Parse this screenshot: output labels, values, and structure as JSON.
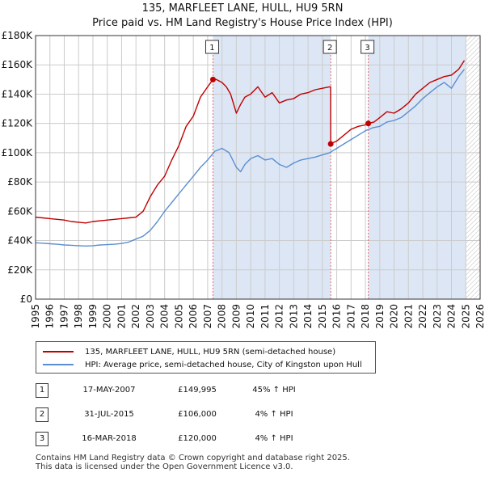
{
  "title": {
    "line1": "135, MARFLEET LANE, HULL, HU9 5RN",
    "line2": "Price paid vs. HM Land Registry's House Price Index (HPI)"
  },
  "colors": {
    "property": "#c00000",
    "hpi": "#5b8fd0",
    "shade": "#dde6f5",
    "grid": "#cccccc",
    "marker_line": "#e07070"
  },
  "chart_data": {
    "type": "line",
    "title": "135, MARFLEET LANE, HULL, HU9 5RN — Price paid vs. HM Land Registry's House Price Index (HPI)",
    "xlabel": "",
    "ylabel": "",
    "xlim": [
      1995,
      2026
    ],
    "ylim": [
      0,
      180000
    ],
    "y_ticks": [
      0,
      20000,
      40000,
      60000,
      80000,
      100000,
      120000,
      140000,
      160000,
      180000
    ],
    "y_tick_labels": [
      "£0",
      "£20K",
      "£40K",
      "£60K",
      "£80K",
      "£100K",
      "£120K",
      "£140K",
      "£160K",
      "£180K"
    ],
    "x_ticks": [
      1995,
      1996,
      1997,
      1998,
      1999,
      2000,
      2001,
      2002,
      2003,
      2004,
      2005,
      2006,
      2007,
      2008,
      2009,
      2010,
      2011,
      2012,
      2013,
      2014,
      2015,
      2016,
      2017,
      2018,
      2019,
      2020,
      2021,
      2022,
      2023,
      2024,
      2025,
      2026
    ],
    "x_tick_labels": [
      "1995",
      "1996",
      "1997",
      "1998",
      "1999",
      "2000",
      "2001",
      "2002",
      "2003",
      "2004",
      "2005",
      "2006",
      "2007",
      "2008",
      "2009",
      "2010",
      "2011",
      "2012",
      "2013",
      "2014",
      "2015",
      "2016",
      "2017",
      "2018",
      "2019",
      "2020",
      "2021",
      "2022",
      "2023",
      "2024",
      "2025",
      "2026"
    ],
    "grid": true,
    "shaded_spans": [
      [
        2007.37,
        2015.58
      ],
      [
        2018.2,
        2025.0
      ]
    ],
    "hatched_from": 2025.0,
    "series": [
      {
        "name": "135, MARFLEET LANE, HULL, HU9 5RN (semi-detached house)",
        "color": "#c00000",
        "x": [
          1995,
          1995.5,
          1996,
          1996.5,
          1997,
          1997.5,
          1998,
          1998.5,
          1999,
          1999.5,
          2000,
          2000.5,
          2001,
          2001.5,
          2002,
          2002.5,
          2003,
          2003.5,
          2004,
          2004.5,
          2005,
          2005.5,
          2006,
          2006.5,
          2007,
          2007.37,
          2007.6,
          2008,
          2008.3,
          2008.6,
          2009,
          2009.3,
          2009.6,
          2010,
          2010.5,
          2011,
          2011.5,
          2012,
          2012.5,
          2013,
          2013.5,
          2014,
          2014.5,
          2015,
          2015.5,
          2015.57,
          2015.58,
          2016,
          2016.5,
          2017,
          2017.5,
          2018,
          2018.2,
          2018.6,
          2019,
          2019.5,
          2020,
          2020.5,
          2021,
          2021.5,
          2022,
          2022.5,
          2023,
          2023.5,
          2024,
          2024.5,
          2024.9
        ],
        "values": [
          56000,
          55500,
          55000,
          54500,
          54000,
          53000,
          52500,
          52000,
          53000,
          53500,
          54000,
          54500,
          55000,
          55500,
          56000,
          60000,
          70000,
          78000,
          84000,
          95000,
          105000,
          118000,
          125000,
          138000,
          145000,
          149995,
          150000,
          148000,
          145000,
          140000,
          127000,
          133000,
          138000,
          140000,
          145000,
          138000,
          141000,
          134000,
          136000,
          137000,
          140000,
          141000,
          143000,
          144000,
          145000,
          145000,
          106000,
          108000,
          112000,
          116000,
          118000,
          119000,
          120000,
          121000,
          124000,
          128000,
          127000,
          130000,
          134000,
          140000,
          144000,
          148000,
          150000,
          152000,
          153000,
          157000,
          163000
        ]
      },
      {
        "name": "HPI: Average price, semi-detached house, City of Kingston upon Hull",
        "color": "#5b8fd0",
        "x": [
          1995,
          1995.5,
          1996,
          1996.5,
          1997,
          1997.5,
          1998,
          1998.5,
          1999,
          1999.5,
          2000,
          2000.5,
          2001,
          2001.5,
          2002,
          2002.5,
          2003,
          2003.5,
          2004,
          2004.5,
          2005,
          2005.5,
          2006,
          2006.5,
          2007,
          2007.5,
          2008,
          2008.5,
          2009,
          2009.3,
          2009.6,
          2010,
          2010.5,
          2011,
          2011.5,
          2012,
          2012.5,
          2013,
          2013.5,
          2014,
          2014.5,
          2015,
          2015.5,
          2016,
          2016.5,
          2017,
          2017.5,
          2018,
          2018.5,
          2019,
          2019.5,
          2020,
          2020.5,
          2021,
          2021.5,
          2022,
          2022.5,
          2023,
          2023.5,
          2024,
          2024.5,
          2024.9
        ],
        "values": [
          38500,
          38200,
          37800,
          37500,
          37000,
          36800,
          36500,
          36300,
          36500,
          37000,
          37200,
          37500,
          38000,
          39000,
          41000,
          43000,
          47000,
          53000,
          60000,
          66000,
          72000,
          78000,
          84000,
          90000,
          95000,
          101000,
          103000,
          100000,
          90000,
          87000,
          92000,
          96000,
          98000,
          95000,
          96000,
          92000,
          90000,
          93000,
          95000,
          96000,
          97000,
          98500,
          100000,
          103000,
          106000,
          109000,
          112000,
          115000,
          117000,
          118000,
          121000,
          122000,
          124000,
          128000,
          132000,
          137000,
          141000,
          145000,
          148000,
          144000,
          152000,
          157000
        ]
      }
    ],
    "markers": [
      {
        "label": "1",
        "x": 2007.37,
        "value": 149995
      },
      {
        "label": "2",
        "x": 2015.58,
        "value": 106000
      },
      {
        "label": "3",
        "x": 2018.2,
        "value": 120000
      }
    ]
  },
  "legend": {
    "property_label": "135, MARFLEET LANE, HULL, HU9 5RN (semi-detached house)",
    "hpi_label": "HPI: Average price, semi-detached house, City of Kingston upon Hull"
  },
  "sales": [
    {
      "num": "1",
      "date": "17-MAY-2007",
      "price": "£149,995",
      "hpi": "45% ↑ HPI"
    },
    {
      "num": "2",
      "date": "31-JUL-2015",
      "price": "£106,000",
      "hpi": "4% ↑ HPI"
    },
    {
      "num": "3",
      "date": "16-MAR-2018",
      "price": "£120,000",
      "hpi": "4% ↑ HPI"
    }
  ],
  "footer": {
    "line1": "Contains HM Land Registry data © Crown copyright and database right 2025.",
    "line2": "This data is licensed under the Open Government Licence v3.0."
  }
}
